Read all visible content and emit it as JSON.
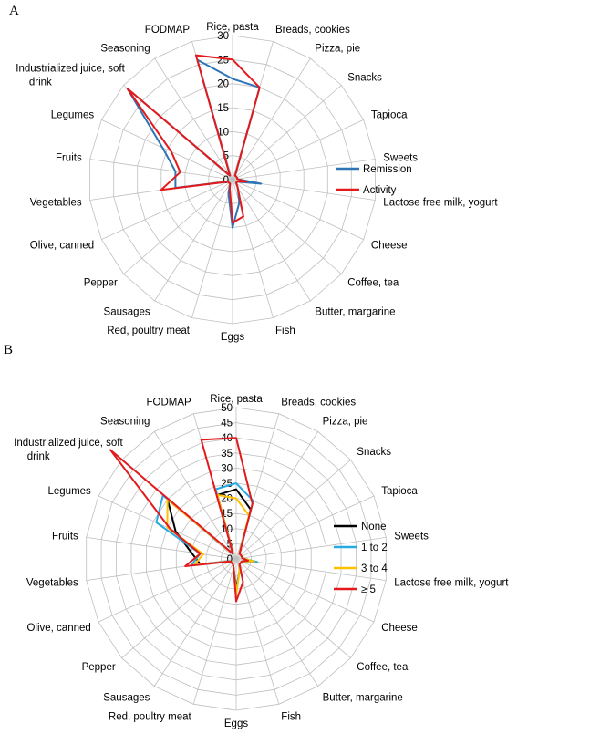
{
  "chart_data": [
    {
      "panel": "A",
      "type": "radar",
      "categories": [
        "Rice, pasta",
        "Breads, cookies",
        "Pizza, pie",
        "Snacks",
        "Tapioca",
        "Sweets",
        "Lactose free milk, yogurt",
        "Cheese",
        "Coffee, tea",
        "Butter, margarine",
        "Fish",
        "Eggs",
        "Red, poultry meat",
        "Sausages",
        "Pepper",
        "Olive, canned",
        "Vegetables",
        "Fruits",
        "Legumes",
        "Industrialized juice, soft drink",
        "Seasoning",
        "FODMAP"
      ],
      "ticks": [
        "0",
        "5",
        "10",
        "15",
        "20",
        "25",
        "30"
      ],
      "rmax": 30,
      "series": [
        {
          "name": "Remission",
          "color": "#2e75b6",
          "values": [
            21,
            20,
            1,
            1,
            1,
            1,
            6,
            1,
            1,
            2,
            5,
            10,
            3,
            1,
            1,
            1,
            12,
            12,
            16,
            29,
            1,
            26
          ]
        },
        {
          "name": "Activity",
          "color": "#e31a1c",
          "values": [
            25,
            20,
            1,
            1,
            1,
            1,
            3,
            1,
            1,
            2,
            8,
            9,
            2,
            1,
            1,
            1,
            15,
            11,
            14,
            29,
            1,
            27
          ]
        }
      ]
    },
    {
      "panel": "B",
      "type": "radar",
      "categories": [
        "Rice, pasta",
        "Breads, cookies",
        "Pizza, pie",
        "Snacks",
        "Tapioca",
        "Sweets",
        "Lactose free milk, yogurt",
        "Cheese",
        "Coffee, tea",
        "Butter, margarine",
        "Fish",
        "Eggs",
        "Red, poultry meat",
        "Sausages",
        "Pepper",
        "Olive, canned",
        "Vegetables",
        "Fruits",
        "Legumes",
        "Industrialized juice, soft drink",
        "Seasoning",
        "FODMAP"
      ],
      "ticks": [
        "0",
        "5",
        "10",
        "15",
        "20",
        "25",
        "30",
        "35",
        "40",
        "45",
        "50"
      ],
      "rmax": 50,
      "series": [
        {
          "name": "None",
          "color": "#000000",
          "values": [
            23,
            17,
            2,
            2,
            2,
            2,
            5,
            2,
            2,
            2,
            4,
            10,
            3,
            2,
            2,
            2,
            12,
            15,
            22,
            30,
            2,
            22
          ]
        },
        {
          "name": "1 to 2",
          "color": "#29abe2",
          "values": [
            25,
            20,
            2,
            2,
            2,
            2,
            7,
            2,
            2,
            2,
            4,
            11,
            3,
            2,
            2,
            2,
            15,
            12,
            29,
            32,
            2,
            24
          ]
        },
        {
          "name": "3 to 4",
          "color": "#ffc000",
          "values": [
            20,
            15,
            2,
            2,
            2,
            2,
            6,
            2,
            2,
            2,
            4,
            12,
            3,
            2,
            2,
            2,
            14,
            11,
            25,
            30,
            2,
            22
          ]
        },
        {
          "name": "≥ 5",
          "color": "#e31a1c",
          "values": [
            40,
            19,
            2,
            2,
            2,
            2,
            4,
            2,
            2,
            2,
            8,
            14,
            3,
            2,
            2,
            2,
            17,
            12,
            24,
            55,
            2,
            41
          ]
        }
      ]
    }
  ]
}
